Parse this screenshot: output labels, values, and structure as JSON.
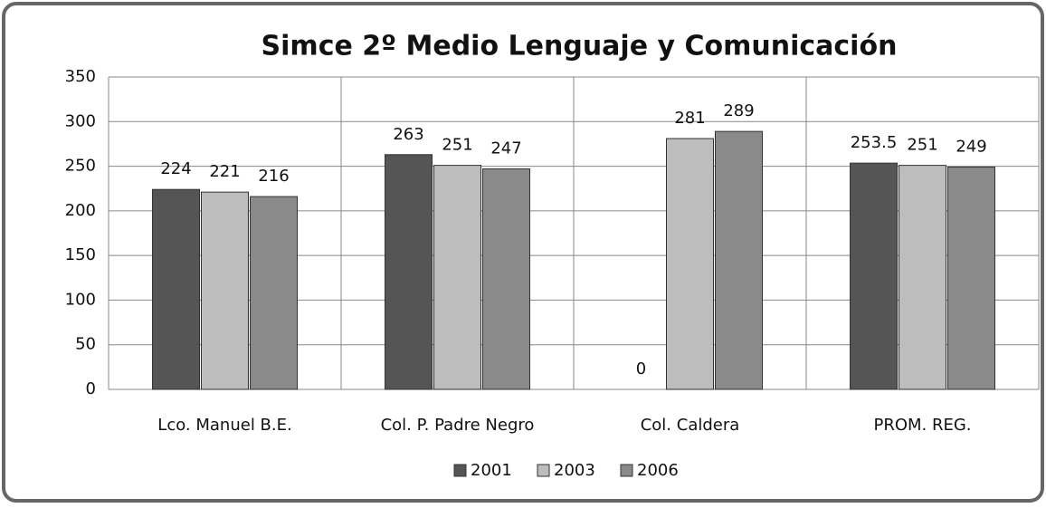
{
  "chart_data": {
    "type": "bar",
    "title": "Simce 2º Medio Lenguaje y Comunicación",
    "categories": [
      "Lco. Manuel B.E.",
      "Col. P. Padre Negro",
      "Col. Caldera",
      "PROM. REG."
    ],
    "series": [
      {
        "name": "2001",
        "color": "#555555",
        "values": [
          224,
          263,
          0,
          253.5
        ]
      },
      {
        "name": "2003",
        "color": "#bdbdbd",
        "values": [
          221,
          251,
          281,
          251
        ]
      },
      {
        "name": "2006",
        "color": "#8a8a8a",
        "values": [
          216,
          247,
          289,
          249
        ]
      }
    ],
    "ylim": [
      0,
      350
    ],
    "yticks": [
      0,
      50,
      100,
      150,
      200,
      250,
      300,
      350
    ],
    "grid": true,
    "legend": "bottom"
  }
}
